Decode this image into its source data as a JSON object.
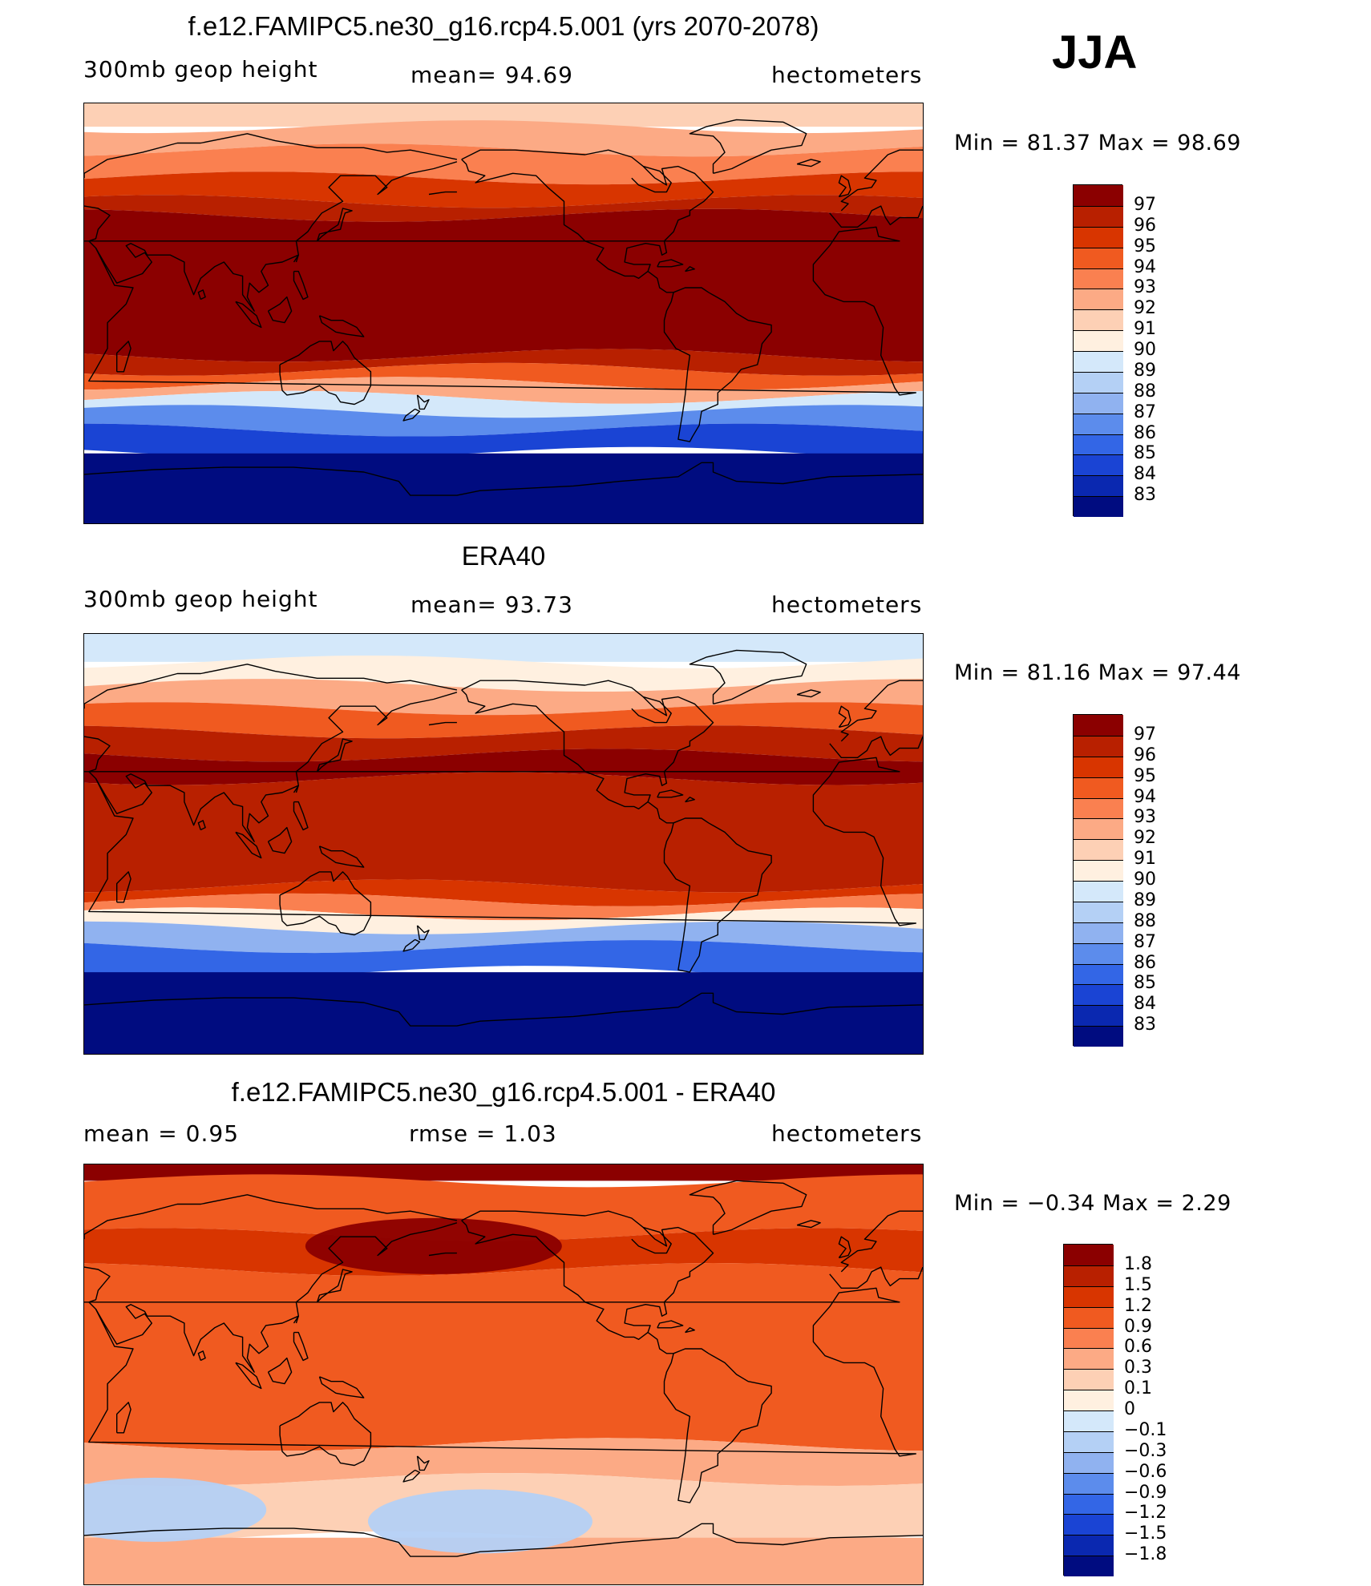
{
  "season": "JJA",
  "panels": [
    {
      "title": "f.e12.FAMIPC5.ne30_g16.rcp4.5.001 (yrs 2070-2078)",
      "left_label": "300mb geop height",
      "center_label": "mean=  94.69",
      "right_label": "hectometers",
      "minmax": "Min =  81.37 Max =  98.69",
      "colorbar": {
        "labels": [
          "97",
          "96",
          "95",
          "94",
          "93",
          "92",
          "91",
          "90",
          "89",
          "88",
          "87",
          "86",
          "85",
          "84",
          "83"
        ],
        "colors": [
          "#8b0000",
          "#b82000",
          "#d83500",
          "#f05a20",
          "#fa8050",
          "#fcaa85",
          "#fdd0b5",
          "#fff0e0",
          "#d4e8fa",
          "#b4d0f5",
          "#90b2f0",
          "#5c8cec",
          "#3366e6",
          "#1a44d4",
          "#0a28b0",
          "#000c80"
        ]
      },
      "chart_data": {
        "type": "heatmap",
        "description_field": "300mb geopotential height zonal-band contour field",
        "bands": [
          {
            "lat_from": 90,
            "lat_to": 80,
            "value": 91.5
          },
          {
            "lat_from": 80,
            "lat_to": 70,
            "value": 92.5
          },
          {
            "lat_from": 70,
            "lat_to": 58,
            "value": 93.5
          },
          {
            "lat_from": 58,
            "lat_to": 48,
            "value": 95
          },
          {
            "lat_from": 48,
            "lat_to": 42,
            "value": 96.5
          },
          {
            "lat_from": 42,
            "lat_to": -18,
            "value": 97.5
          },
          {
            "lat_from": -18,
            "lat_to": -24,
            "value": 96.5
          },
          {
            "lat_from": -24,
            "lat_to": -30,
            "value": 94.5
          },
          {
            "lat_from": -30,
            "lat_to": -36,
            "value": 92
          },
          {
            "lat_from": -36,
            "lat_to": -42,
            "value": 89.5
          },
          {
            "lat_from": -42,
            "lat_to": -50,
            "value": 86.5
          },
          {
            "lat_from": -50,
            "lat_to": -60,
            "value": 84.5
          },
          {
            "lat_from": -60,
            "lat_to": -90,
            "value": 82.5
          }
        ]
      }
    },
    {
      "title": "ERA40",
      "left_label": "300mb geop height",
      "center_label": "mean=  93.73",
      "right_label": "hectometers",
      "minmax": "Min =  81.16 Max =  97.44",
      "colorbar": {
        "labels": [
          "97",
          "96",
          "95",
          "94",
          "93",
          "92",
          "91",
          "90",
          "89",
          "88",
          "87",
          "86",
          "85",
          "84",
          "83"
        ],
        "colors": [
          "#8b0000",
          "#b82000",
          "#d83500",
          "#f05a20",
          "#fa8050",
          "#fcaa85",
          "#fdd0b5",
          "#fff0e0",
          "#d4e8fa",
          "#b4d0f5",
          "#90b2f0",
          "#5c8cec",
          "#3366e6",
          "#1a44d4",
          "#0a28b0",
          "#000c80"
        ]
      },
      "chart_data": {
        "type": "heatmap",
        "description_field": "300mb geopotential height zonal-band contour field",
        "bands": [
          {
            "lat_from": 90,
            "lat_to": 78,
            "value": 89.5
          },
          {
            "lat_from": 78,
            "lat_to": 68,
            "value": 90.5
          },
          {
            "lat_from": 68,
            "lat_to": 58,
            "value": 92
          },
          {
            "lat_from": 58,
            "lat_to": 48,
            "value": 94
          },
          {
            "lat_from": 48,
            "lat_to": 38,
            "value": 96
          },
          {
            "lat_from": 38,
            "lat_to": 28,
            "value": 97.2
          },
          {
            "lat_from": 28,
            "lat_to": -18,
            "value": 96.5
          },
          {
            "lat_from": -18,
            "lat_to": -24,
            "value": 95
          },
          {
            "lat_from": -24,
            "lat_to": -30,
            "value": 93
          },
          {
            "lat_from": -30,
            "lat_to": -36,
            "value": 90.5
          },
          {
            "lat_from": -36,
            "lat_to": -44,
            "value": 87.5
          },
          {
            "lat_from": -44,
            "lat_to": -55,
            "value": 85
          },
          {
            "lat_from": -55,
            "lat_to": -90,
            "value": 82.5
          }
        ]
      }
    },
    {
      "title": "f.e12.FAMIPC5.ne30_g16.rcp4.5.001 - ERA40",
      "left_label": "mean =    0.95",
      "center_label": "rmse =    1.03",
      "right_label": "hectometers",
      "minmax": "Min =  −0.34 Max =    2.29",
      "colorbar": {
        "labels": [
          "1.8",
          "1.5",
          "1.2",
          "0.9",
          "0.6",
          "0.3",
          "0.1",
          "0",
          "−0.1",
          "−0.3",
          "−0.6",
          "−0.9",
          "−1.2",
          "−1.5",
          "−1.8"
        ],
        "colors": [
          "#8b0000",
          "#b82000",
          "#d83500",
          "#f05a20",
          "#fa8050",
          "#fcaa85",
          "#fdd0b5",
          "#fff0e0",
          "#d4e8fa",
          "#b4d0f5",
          "#90b2f0",
          "#5c8cec",
          "#3366e6",
          "#1a44d4",
          "#0a28b0",
          "#000c80"
        ]
      },
      "chart_data": {
        "type": "heatmap",
        "description_field": "difference field (model minus ERA40)",
        "bands": [
          {
            "lat_from": 90,
            "lat_to": 83,
            "value": 2.0
          },
          {
            "lat_from": 83,
            "lat_to": 60,
            "value": 1.0
          },
          {
            "lat_from": 60,
            "lat_to": 45,
            "value": 1.2
          },
          {
            "lat_from": 45,
            "lat_to": -30,
            "value": 0.9
          },
          {
            "lat_from": -30,
            "lat_to": -45,
            "value": 0.5
          },
          {
            "lat_from": -45,
            "lat_to": -70,
            "value": 0.2
          },
          {
            "lat_from": -70,
            "lat_to": -90,
            "value": 0.4
          }
        ],
        "features": [
          {
            "name": "north-pacific-maximum",
            "lon": 180,
            "lat": 55,
            "value": 1.9
          },
          {
            "name": "south-atlantic-minimum",
            "lon": 60,
            "lat": -58,
            "value": -0.3
          },
          {
            "name": "south-pacific-minimum",
            "lon": 200,
            "lat": -63,
            "value": -0.2
          }
        ]
      }
    }
  ]
}
